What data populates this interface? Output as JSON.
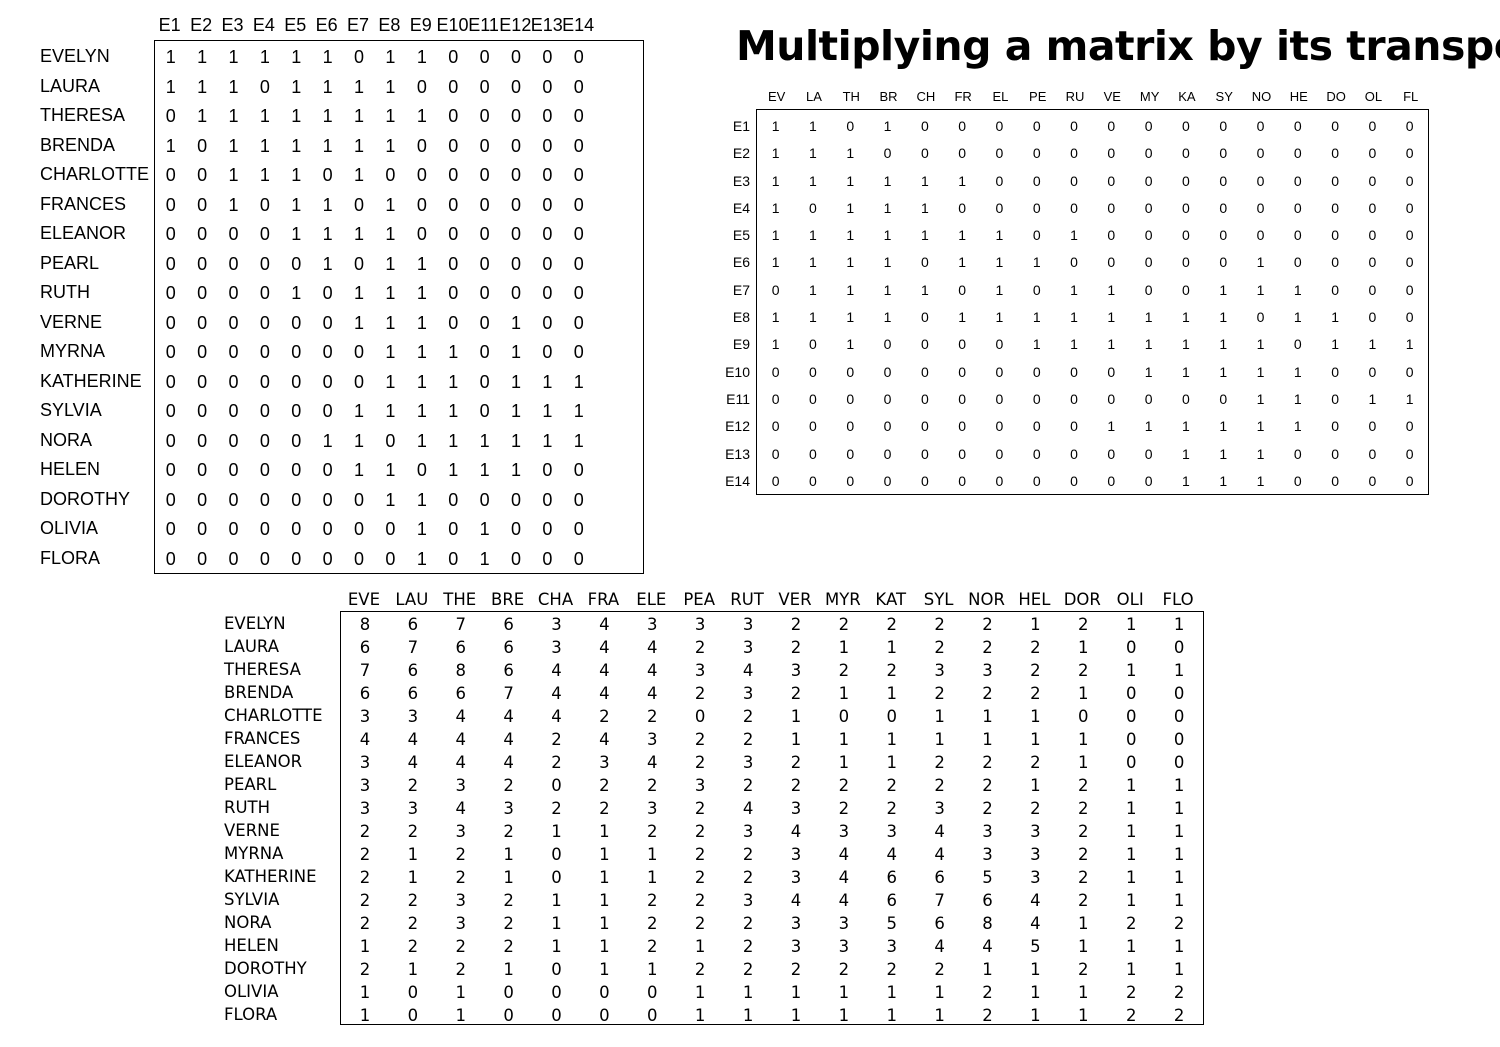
{
  "title": "Multiplying a matrix by its transpose",
  "matrix_a": {
    "columns": [
      "E1",
      "E2",
      "E3",
      "E4",
      "E5",
      "E6",
      "E7",
      "E8",
      "E9",
      "E10",
      "E11",
      "E12",
      "E13",
      "E14"
    ],
    "rows": [
      "EVELYN",
      "LAURA",
      "THERESA",
      "BRENDA",
      "CHARLOTTE",
      "FRANCES",
      "ELEANOR",
      "PEARL",
      "RUTH",
      "VERNE",
      "MYRNA",
      "KATHERINE",
      "SYLVIA",
      "NORA",
      "HELEN",
      "DOROTHY",
      "OLIVIA",
      "FLORA"
    ],
    "values": [
      [
        1,
        1,
        1,
        1,
        1,
        1,
        0,
        1,
        1,
        0,
        0,
        0,
        0,
        0
      ],
      [
        1,
        1,
        1,
        0,
        1,
        1,
        1,
        1,
        0,
        0,
        0,
        0,
        0,
        0
      ],
      [
        0,
        1,
        1,
        1,
        1,
        1,
        1,
        1,
        1,
        0,
        0,
        0,
        0,
        0
      ],
      [
        1,
        0,
        1,
        1,
        1,
        1,
        1,
        1,
        0,
        0,
        0,
        0,
        0,
        0
      ],
      [
        0,
        0,
        1,
        1,
        1,
        0,
        1,
        0,
        0,
        0,
        0,
        0,
        0,
        0
      ],
      [
        0,
        0,
        1,
        0,
        1,
        1,
        0,
        1,
        0,
        0,
        0,
        0,
        0,
        0
      ],
      [
        0,
        0,
        0,
        0,
        1,
        1,
        1,
        1,
        0,
        0,
        0,
        0,
        0,
        0
      ],
      [
        0,
        0,
        0,
        0,
        0,
        1,
        0,
        1,
        1,
        0,
        0,
        0,
        0,
        0
      ],
      [
        0,
        0,
        0,
        0,
        1,
        0,
        1,
        1,
        1,
        0,
        0,
        0,
        0,
        0
      ],
      [
        0,
        0,
        0,
        0,
        0,
        0,
        1,
        1,
        1,
        0,
        0,
        1,
        0,
        0
      ],
      [
        0,
        0,
        0,
        0,
        0,
        0,
        0,
        1,
        1,
        1,
        0,
        1,
        0,
        0
      ],
      [
        0,
        0,
        0,
        0,
        0,
        0,
        0,
        1,
        1,
        1,
        0,
        1,
        1,
        1
      ],
      [
        0,
        0,
        0,
        0,
        0,
        0,
        1,
        1,
        1,
        1,
        0,
        1,
        1,
        1
      ],
      [
        0,
        0,
        0,
        0,
        0,
        1,
        1,
        0,
        1,
        1,
        1,
        1,
        1,
        1
      ],
      [
        0,
        0,
        0,
        0,
        0,
        0,
        1,
        1,
        0,
        1,
        1,
        1,
        0,
        0
      ],
      [
        0,
        0,
        0,
        0,
        0,
        0,
        0,
        1,
        1,
        0,
        0,
        0,
        0,
        0
      ],
      [
        0,
        0,
        0,
        0,
        0,
        0,
        0,
        0,
        1,
        0,
        1,
        0,
        0,
        0
      ],
      [
        0,
        0,
        0,
        0,
        0,
        0,
        0,
        0,
        1,
        0,
        1,
        0,
        0,
        0
      ]
    ]
  },
  "matrix_t": {
    "columns": [
      "EV",
      "LA",
      "TH",
      "BR",
      "CH",
      "FR",
      "EL",
      "PE",
      "RU",
      "VE",
      "MY",
      "KA",
      "SY",
      "NO",
      "HE",
      "DO",
      "OL",
      "FL"
    ],
    "rows": [
      "E1",
      "E2",
      "E3",
      "E4",
      "E5",
      "E6",
      "E7",
      "E8",
      "E9",
      "E10",
      "E11",
      "E12",
      "E13",
      "E14"
    ],
    "values": [
      [
        1,
        1,
        0,
        1,
        0,
        0,
        0,
        0,
        0,
        0,
        0,
        0,
        0,
        0,
        0,
        0,
        0,
        0
      ],
      [
        1,
        1,
        1,
        0,
        0,
        0,
        0,
        0,
        0,
        0,
        0,
        0,
        0,
        0,
        0,
        0,
        0,
        0
      ],
      [
        1,
        1,
        1,
        1,
        1,
        1,
        0,
        0,
        0,
        0,
        0,
        0,
        0,
        0,
        0,
        0,
        0,
        0
      ],
      [
        1,
        0,
        1,
        1,
        1,
        0,
        0,
        0,
        0,
        0,
        0,
        0,
        0,
        0,
        0,
        0,
        0,
        0
      ],
      [
        1,
        1,
        1,
        1,
        1,
        1,
        1,
        0,
        1,
        0,
        0,
        0,
        0,
        0,
        0,
        0,
        0,
        0
      ],
      [
        1,
        1,
        1,
        1,
        0,
        1,
        1,
        1,
        0,
        0,
        0,
        0,
        0,
        1,
        0,
        0,
        0,
        0
      ],
      [
        0,
        1,
        1,
        1,
        1,
        0,
        1,
        0,
        1,
        1,
        0,
        0,
        1,
        1,
        1,
        0,
        0,
        0
      ],
      [
        1,
        1,
        1,
        1,
        0,
        1,
        1,
        1,
        1,
        1,
        1,
        1,
        1,
        0,
        1,
        1,
        0,
        0
      ],
      [
        1,
        0,
        1,
        0,
        0,
        0,
        0,
        1,
        1,
        1,
        1,
        1,
        1,
        1,
        0,
        1,
        1,
        1
      ],
      [
        0,
        0,
        0,
        0,
        0,
        0,
        0,
        0,
        0,
        0,
        1,
        1,
        1,
        1,
        1,
        0,
        0,
        0
      ],
      [
        0,
        0,
        0,
        0,
        0,
        0,
        0,
        0,
        0,
        0,
        0,
        0,
        0,
        1,
        1,
        0,
        1,
        1
      ],
      [
        0,
        0,
        0,
        0,
        0,
        0,
        0,
        0,
        0,
        1,
        1,
        1,
        1,
        1,
        1,
        0,
        0,
        0
      ],
      [
        0,
        0,
        0,
        0,
        0,
        0,
        0,
        0,
        0,
        0,
        0,
        1,
        1,
        1,
        0,
        0,
        0,
        0
      ],
      [
        0,
        0,
        0,
        0,
        0,
        0,
        0,
        0,
        0,
        0,
        0,
        1,
        1,
        1,
        0,
        0,
        0,
        0
      ]
    ]
  },
  "matrix_p": {
    "columns": [
      "EVE",
      "LAU",
      "THE",
      "BRE",
      "CHA",
      "FRA",
      "ELE",
      "PEA",
      "RUT",
      "VER",
      "MYR",
      "KAT",
      "SYL",
      "NOR",
      "HEL",
      "DOR",
      "OLI",
      "FLO"
    ],
    "rows": [
      "EVELYN",
      "LAURA",
      "THERESA",
      "BRENDA",
      "CHARLOTTE",
      "FRANCES",
      "ELEANOR",
      "PEARL",
      "RUTH",
      "VERNE",
      "MYRNA",
      "KATHERINE",
      "SYLVIA",
      "NORA",
      "HELEN",
      "DOROTHY",
      "OLIVIA",
      "FLORA"
    ],
    "values": [
      [
        8,
        6,
        7,
        6,
        3,
        4,
        3,
        3,
        3,
        2,
        2,
        2,
        2,
        2,
        1,
        2,
        1,
        1
      ],
      [
        6,
        7,
        6,
        6,
        3,
        4,
        4,
        2,
        3,
        2,
        1,
        1,
        2,
        2,
        2,
        1,
        0,
        0
      ],
      [
        7,
        6,
        8,
        6,
        4,
        4,
        4,
        3,
        4,
        3,
        2,
        2,
        3,
        3,
        2,
        2,
        1,
        1
      ],
      [
        6,
        6,
        6,
        7,
        4,
        4,
        4,
        2,
        3,
        2,
        1,
        1,
        2,
        2,
        2,
        1,
        0,
        0
      ],
      [
        3,
        3,
        4,
        4,
        4,
        2,
        2,
        0,
        2,
        1,
        0,
        0,
        1,
        1,
        1,
        0,
        0,
        0
      ],
      [
        4,
        4,
        4,
        4,
        2,
        4,
        3,
        2,
        2,
        1,
        1,
        1,
        1,
        1,
        1,
        1,
        0,
        0
      ],
      [
        3,
        4,
        4,
        4,
        2,
        3,
        4,
        2,
        3,
        2,
        1,
        1,
        2,
        2,
        2,
        1,
        0,
        0
      ],
      [
        3,
        2,
        3,
        2,
        0,
        2,
        2,
        3,
        2,
        2,
        2,
        2,
        2,
        2,
        1,
        2,
        1,
        1
      ],
      [
        3,
        3,
        4,
        3,
        2,
        2,
        3,
        2,
        4,
        3,
        2,
        2,
        3,
        2,
        2,
        2,
        1,
        1
      ],
      [
        2,
        2,
        3,
        2,
        1,
        1,
        2,
        2,
        3,
        4,
        3,
        3,
        4,
        3,
        3,
        2,
        1,
        1
      ],
      [
        2,
        1,
        2,
        1,
        0,
        1,
        1,
        2,
        2,
        3,
        4,
        4,
        4,
        3,
        3,
        2,
        1,
        1
      ],
      [
        2,
        1,
        2,
        1,
        0,
        1,
        1,
        2,
        2,
        3,
        4,
        6,
        6,
        5,
        3,
        2,
        1,
        1
      ],
      [
        2,
        2,
        3,
        2,
        1,
        1,
        2,
        2,
        3,
        4,
        4,
        6,
        7,
        6,
        4,
        2,
        1,
        1
      ],
      [
        2,
        2,
        3,
        2,
        1,
        1,
        2,
        2,
        2,
        3,
        3,
        5,
        6,
        8,
        4,
        1,
        2,
        2
      ],
      [
        1,
        2,
        2,
        2,
        1,
        1,
        2,
        1,
        2,
        3,
        3,
        3,
        4,
        4,
        5,
        1,
        1,
        1
      ],
      [
        2,
        1,
        2,
        1,
        0,
        1,
        1,
        2,
        2,
        2,
        2,
        2,
        2,
        1,
        1,
        2,
        1,
        1
      ],
      [
        1,
        0,
        1,
        0,
        0,
        0,
        0,
        1,
        1,
        1,
        1,
        1,
        1,
        2,
        1,
        1,
        2,
        2
      ],
      [
        1,
        0,
        1,
        0,
        0,
        0,
        0,
        1,
        1,
        1,
        1,
        1,
        1,
        2,
        1,
        1,
        2,
        2
      ]
    ]
  }
}
